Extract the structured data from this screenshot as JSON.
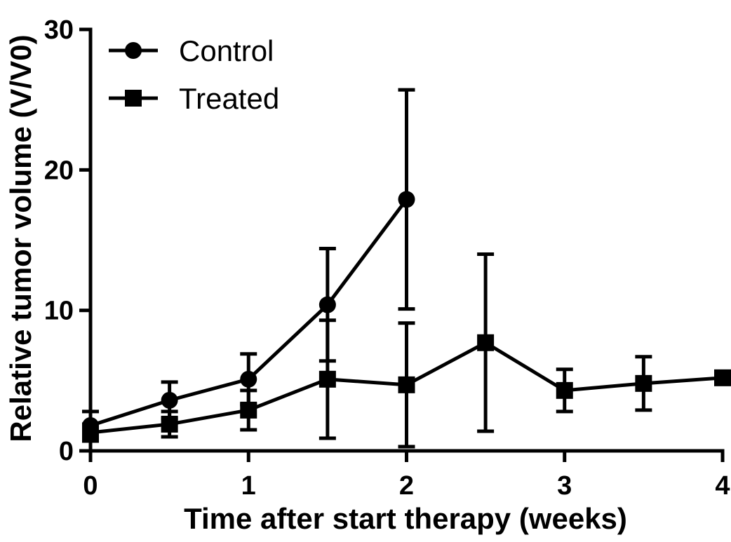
{
  "chart_data": {
    "type": "line",
    "xlabel": "Time after start therapy (weeks)",
    "ylabel": "Relative tumor volume (V/V0)",
    "xlim": [
      0,
      4
    ],
    "ylim": [
      0,
      30
    ],
    "x_ticks": [
      "0",
      "1",
      "2",
      "3",
      "4"
    ],
    "y_ticks": [
      "0",
      "10",
      "20",
      "30"
    ],
    "grid": false,
    "legend": "top-left",
    "series": [
      {
        "name": "Control",
        "marker": "circle",
        "x": [
          0,
          0.5,
          1,
          1.5,
          2
        ],
        "y": [
          1.8,
          3.6,
          5.1,
          10.4,
          17.9
        ],
        "error": [
          1.0,
          1.3,
          1.8,
          4.0,
          7.8
        ]
      },
      {
        "name": "Treated",
        "marker": "square",
        "x": [
          0,
          0.5,
          1,
          1.5,
          2,
          2.5,
          3,
          3.5,
          4
        ],
        "y": [
          1.3,
          1.9,
          2.9,
          5.1,
          4.7,
          7.7,
          4.3,
          4.8,
          5.2
        ],
        "error": [
          0.6,
          0.9,
          1.4,
          4.2,
          4.4,
          6.3,
          1.5,
          1.9,
          0
        ]
      }
    ],
    "color": "#000000"
  }
}
